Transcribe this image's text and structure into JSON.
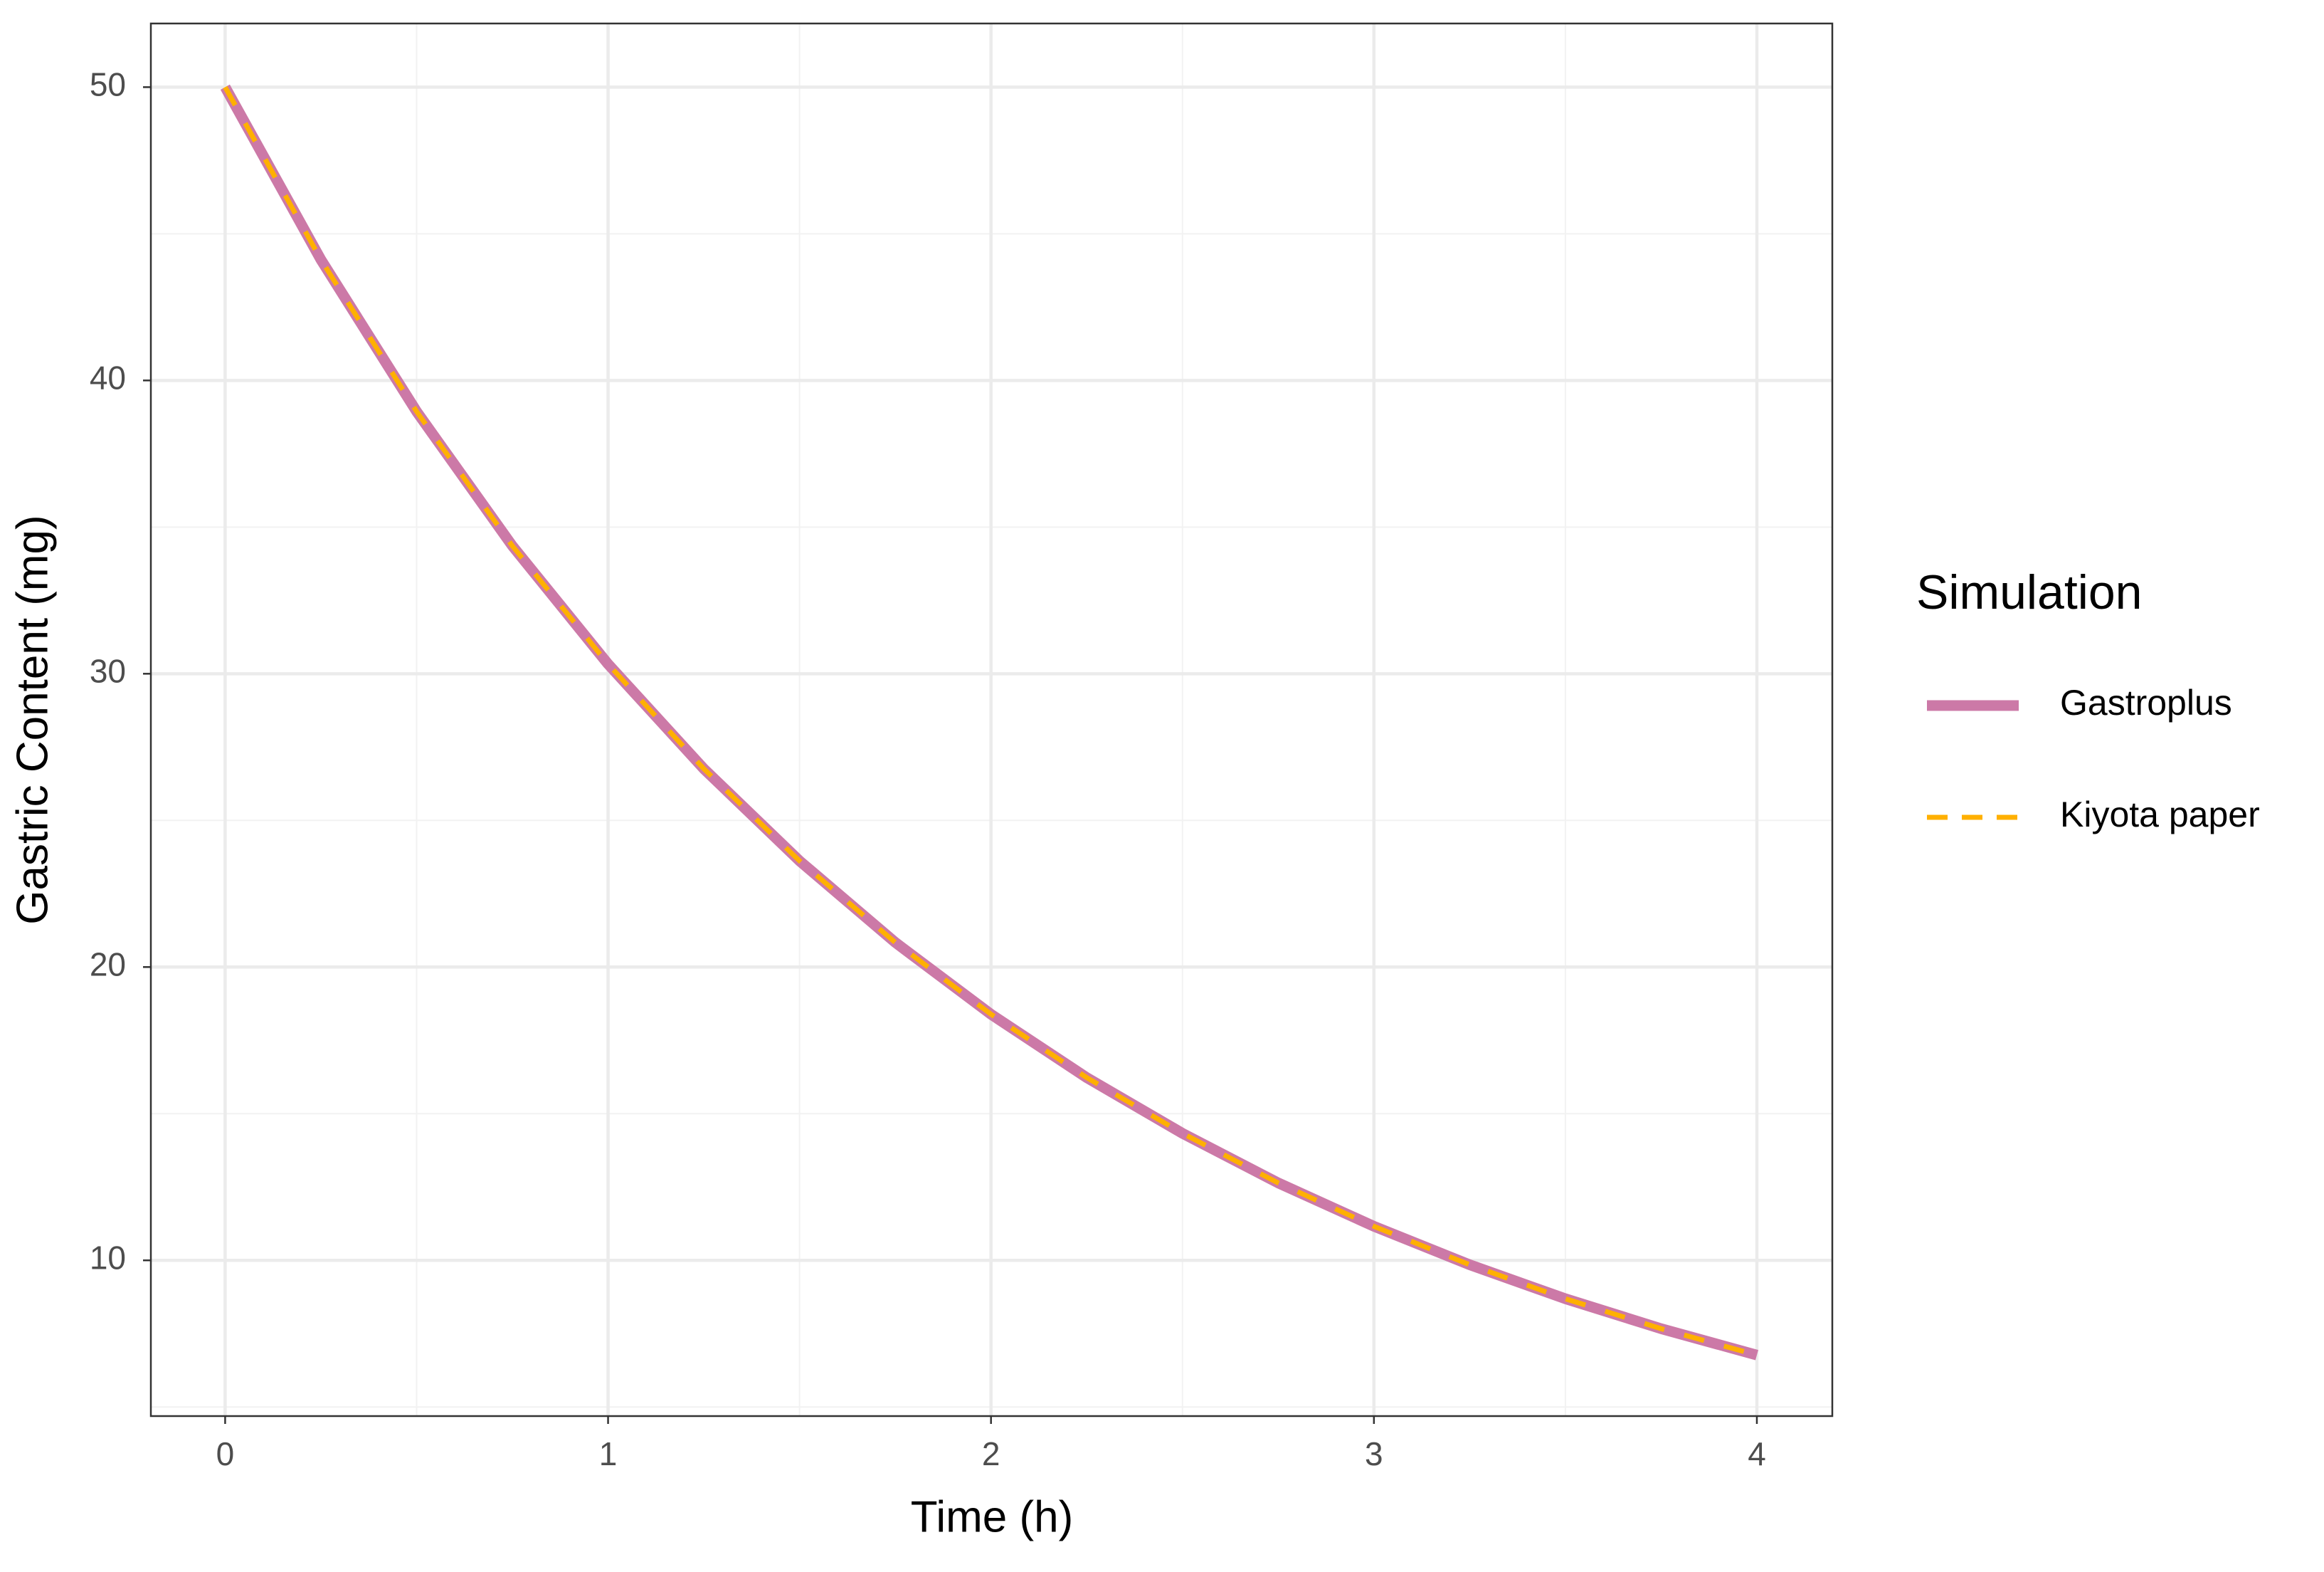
{
  "chart_data": {
    "type": "line",
    "x_label": "Time (h)",
    "y_label": "Gastric Content (mg)",
    "legend_title": "Simulation",
    "legend_position": "right",
    "grid": true,
    "x": [
      0,
      0.25,
      0.5,
      0.75,
      1,
      1.25,
      1.5,
      1.75,
      2,
      2.25,
      2.5,
      2.75,
      3,
      3.25,
      3.5,
      3.75,
      4
    ],
    "series": [
      {
        "name": "Gastroplus",
        "color": "#cc79a7",
        "dash": "solid",
        "values": [
          50,
          44.12,
          38.94,
          34.36,
          30.33,
          26.76,
          23.62,
          20.84,
          18.39,
          16.23,
          14.33,
          12.64,
          11.16,
          9.85,
          8.69,
          7.67,
          6.77
        ]
      },
      {
        "name": "Kiyota paper",
        "color": "#ffb000",
        "dash": "dashed",
        "values": [
          50,
          44.12,
          38.94,
          34.36,
          30.33,
          26.76,
          23.62,
          20.84,
          18.39,
          16.23,
          14.33,
          12.64,
          11.16,
          9.85,
          8.69,
          7.67,
          6.77
        ]
      }
    ],
    "xlim": [
      -0.194,
      4.197
    ],
    "ylim": [
      4.69,
      52.17
    ],
    "xticks": [
      0,
      1,
      2,
      3,
      4
    ],
    "yticks": [
      10,
      20,
      30,
      40,
      50
    ],
    "xminor": [
      0.5,
      1.5,
      2.5,
      3.5
    ],
    "yminor": [
      5,
      15,
      25,
      35,
      45
    ]
  }
}
